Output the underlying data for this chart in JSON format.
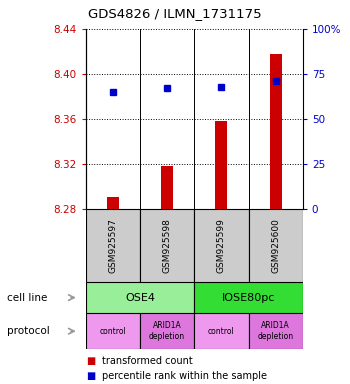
{
  "title": "GDS4826 / ILMN_1731175",
  "samples": [
    "GSM925597",
    "GSM925598",
    "GSM925599",
    "GSM925600"
  ],
  "bar_values": [
    8.291,
    8.318,
    8.358,
    8.418
  ],
  "bar_base": 8.28,
  "percentile_values": [
    65,
    67,
    68,
    71
  ],
  "ylim_left": [
    8.28,
    8.44
  ],
  "ylim_right": [
    0,
    100
  ],
  "yticks_left": [
    8.28,
    8.32,
    8.36,
    8.4,
    8.44
  ],
  "yticks_right": [
    0,
    25,
    50,
    75,
    100
  ],
  "ytick_labels_right": [
    "0",
    "25",
    "50",
    "75",
    "100%"
  ],
  "bar_color": "#cc0000",
  "marker_color": "#0000cc",
  "cell_lines": [
    {
      "label": "OSE4",
      "span": [
        0,
        2
      ],
      "color": "#99ee99"
    },
    {
      "label": "IOSE80pc",
      "span": [
        2,
        4
      ],
      "color": "#33dd33"
    }
  ],
  "protocols": [
    {
      "label": "control",
      "span": [
        0,
        1
      ],
      "color": "#ee99ee"
    },
    {
      "label": "ARID1A\ndepletion",
      "span": [
        1,
        2
      ],
      "color": "#dd77dd"
    },
    {
      "label": "control",
      "span": [
        2,
        3
      ],
      "color": "#ee99ee"
    },
    {
      "label": "ARID1A\ndepletion",
      "span": [
        3,
        4
      ],
      "color": "#dd77dd"
    }
  ],
  "legend_items": [
    {
      "label": "transformed count",
      "color": "#cc0000"
    },
    {
      "label": "percentile rank within the sample",
      "color": "#0000cc"
    }
  ],
  "cell_line_label": "cell line",
  "protocol_label": "protocol",
  "sample_box_color": "#cccccc",
  "arrow_color": "#999999"
}
